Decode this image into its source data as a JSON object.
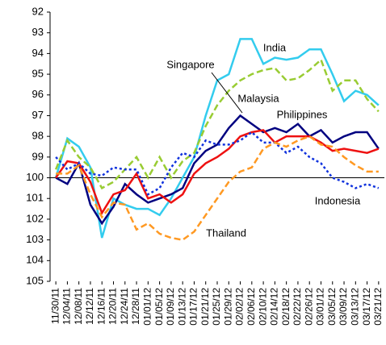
{
  "chart_data": {
    "type": "line",
    "categories": [
      "11/30/11",
      "12/04/11",
      "12/08/11",
      "12/12/11",
      "12/16/11",
      "12/20/11",
      "12/24/11",
      "12/28/11",
      "01/01/12",
      "01/05/12",
      "01/09/12",
      "01/13/12",
      "01/17/12",
      "01/21/12",
      "01/25/12",
      "01/29/12",
      "02/02/12",
      "02/06/12",
      "02/10/12",
      "02/14/12",
      "02/18/12",
      "02/22/12",
      "02/26/12",
      "03/01/12",
      "03/05/12",
      "03/09/12",
      "03/13/12",
      "03/17/12",
      "03/21/12"
    ],
    "series": [
      {
        "name": "India",
        "color": "#33ccee",
        "dash": "solid",
        "values": [
          100,
          98.1,
          98.5,
          99.5,
          102.9,
          101,
          101.3,
          101.5,
          101.5,
          101.8,
          101,
          100,
          99,
          97,
          95.3,
          95,
          93.3,
          93.3,
          94.5,
          94.2,
          94.3,
          94.2,
          93.8,
          93.8,
          95,
          96.3,
          95.8,
          96,
          96.5
        ]
      },
      {
        "name": "Philippines",
        "color": "#99cc33",
        "dash": "dashed",
        "values": [
          99.6,
          98.2,
          99,
          99.5,
          100.5,
          100.2,
          99.6,
          99,
          100,
          99,
          100,
          99.2,
          98.8,
          97.5,
          96.5,
          95.8,
          95.3,
          95,
          94.8,
          94.7,
          95.3,
          95.2,
          94.8,
          94.3,
          95.8,
          95.3,
          95.3,
          96.2,
          96.8
        ]
      },
      {
        "name": "Singapore",
        "color": "#000080",
        "dash": "solid",
        "values": [
          100,
          100.3,
          99.3,
          101.3,
          102.2,
          101.4,
          100.3,
          100.8,
          101.2,
          101,
          100.8,
          100.5,
          99.3,
          98.7,
          98.4,
          97.6,
          97,
          97.4,
          97.8,
          97.6,
          97.8,
          97.4,
          98,
          97.7,
          98.3,
          98,
          97.8,
          97.8,
          98.6
        ]
      },
      {
        "name": "Malaysia",
        "color": "#ee1111",
        "dash": "solid",
        "values": [
          100,
          99.2,
          99.3,
          100.2,
          101.7,
          100.8,
          100.6,
          99.8,
          101,
          100.8,
          101.2,
          100.8,
          99.8,
          99.3,
          99,
          98.6,
          98,
          97.8,
          97.7,
          98.3,
          98,
          98,
          98,
          98.3,
          98.7,
          98.6,
          98.7,
          98.8,
          98.6
        ]
      },
      {
        "name": "Indonesia",
        "color": "#1133dd",
        "dash": "dotted",
        "values": [
          99,
          99.6,
          99.3,
          99.8,
          99.9,
          99.5,
          99.6,
          99.6,
          100.8,
          100.5,
          99.5,
          98.8,
          99,
          98.2,
          98.4,
          98.4,
          98.2,
          97.8,
          98.3,
          98.3,
          98.8,
          98.5,
          99,
          99.3,
          100,
          100.2,
          100.5,
          100.3,
          100.5
        ]
      },
      {
        "name": "Thailand",
        "color": "#ff9922",
        "dash": "dashed",
        "values": [
          99.8,
          99.8,
          99.4,
          100.8,
          101.9,
          101.2,
          101.3,
          102.5,
          102.2,
          102.7,
          102.9,
          103,
          102.6,
          101.8,
          101,
          100.2,
          99.7,
          99.5,
          98.6,
          98.3,
          98.5,
          98.2,
          98,
          98.4,
          98.5,
          99,
          99.4,
          99.7,
          99.7
        ]
      }
    ],
    "ylim": [
      105,
      92
    ],
    "yticks": [
      92,
      93,
      94,
      95,
      96,
      97,
      98,
      99,
      100,
      101,
      102,
      103,
      104,
      105
    ],
    "x_axis_crosses": 100,
    "grid": false
  }
}
